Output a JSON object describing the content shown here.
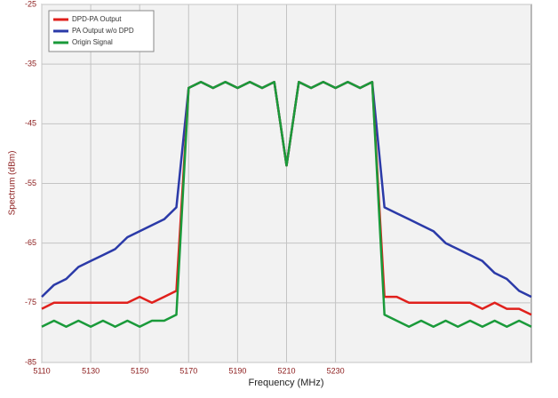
{
  "chart_data": {
    "type": "line",
    "x_label": "Frequency (MHz)",
    "y_label": "Spectrum (dBm)",
    "x": [
      5110,
      5115,
      5120,
      5125,
      5130,
      5135,
      5140,
      5145,
      5150,
      5155,
      5160,
      5165,
      5170,
      5175,
      5180,
      5185,
      5190,
      5195,
      5200,
      5205,
      5210,
      5215,
      5220,
      5225,
      5230,
      5235,
      5240,
      5245,
      5250,
      5255,
      5260,
      5265,
      5270,
      5275,
      5280,
      5285,
      5290,
      5295,
      5300,
      5305,
      5310
    ],
    "series": [
      {
        "name": "PA Output w/o DPD",
        "color": "#2b3aa8",
        "values": [
          -74,
          -72,
          -71,
          -69,
          -68,
          -67,
          -66,
          -64,
          -63,
          -62,
          -61,
          -59,
          -39,
          -38,
          -39,
          -38,
          -39,
          -38,
          -39,
          -38,
          -52,
          -38,
          -39,
          -38,
          -39,
          -38,
          -39,
          -38,
          -59,
          -60,
          -61,
          -62,
          -63,
          -65,
          -66,
          -67,
          -68,
          -70,
          -71,
          -73,
          -74
        ]
      },
      {
        "name": "DPD-PA Output",
        "color": "#e0201c",
        "values": [
          -76,
          -75,
          -75,
          -75,
          -75,
          -75,
          -75,
          -75,
          -74,
          -75,
          -74,
          -73,
          -39,
          -38,
          -39,
          -38,
          -39,
          -38,
          -39,
          -38,
          -52,
          -38,
          -39,
          -38,
          -39,
          -38,
          -39,
          -38,
          -74,
          -74,
          -75,
          -75,
          -75,
          -75,
          -75,
          -75,
          -76,
          -75,
          -76,
          -76,
          -77
        ]
      },
      {
        "name": "Origin Signal",
        "color": "#1a9a3a",
        "values": [
          -79,
          -78,
          -79,
          -78,
          -79,
          -78,
          -79,
          -78,
          -79,
          -78,
          -78,
          -77,
          -39,
          -38,
          -39,
          -38,
          -39,
          -38,
          -39,
          -38,
          -52,
          -38,
          -39,
          -38,
          -39,
          -38,
          -39,
          -38,
          -77,
          -78,
          -79,
          -78,
          -79,
          -78,
          -79,
          -78,
          -79,
          -78,
          -79,
          -78,
          -79
        ]
      }
    ],
    "xlim": [
      5110,
      5310
    ],
    "ylim": [
      -85,
      -25
    ],
    "xticks": [
      5110,
      5130,
      5150,
      5170,
      5190,
      5210,
      5230
    ],
    "yticks": [
      -85,
      -75,
      -65,
      -55,
      -45,
      -35,
      -25
    ],
    "grid": true,
    "legend": "top-left"
  }
}
